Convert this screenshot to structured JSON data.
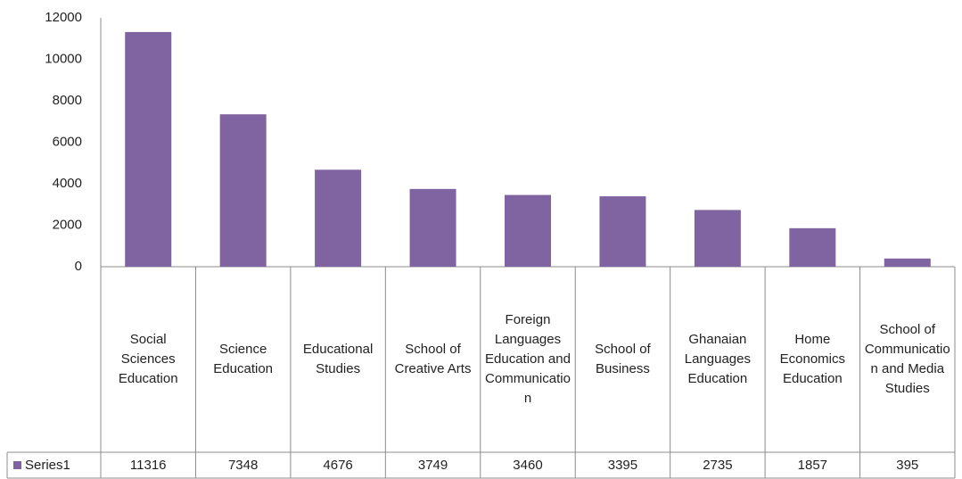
{
  "chart_data": {
    "type": "bar",
    "categories": [
      "Social Sciences Education",
      "Science Education",
      "Educational Studies",
      "School of Creative Arts",
      "Foreign Languages Education and Communication",
      "School of Business",
      "Ghanaian Languages Education",
      "Home Economics Education",
      "School of Communication and Media Studies"
    ],
    "series": [
      {
        "name": "Series1",
        "color": "#8064a2",
        "values": [
          11316,
          7348,
          4676,
          3749,
          3460,
          3395,
          2735,
          1857,
          395
        ]
      }
    ],
    "ylim": [
      0,
      12000
    ],
    "yticks": [
      0,
      2000,
      4000,
      6000,
      8000,
      10000,
      12000
    ],
    "grid": false,
    "data_table": true
  }
}
